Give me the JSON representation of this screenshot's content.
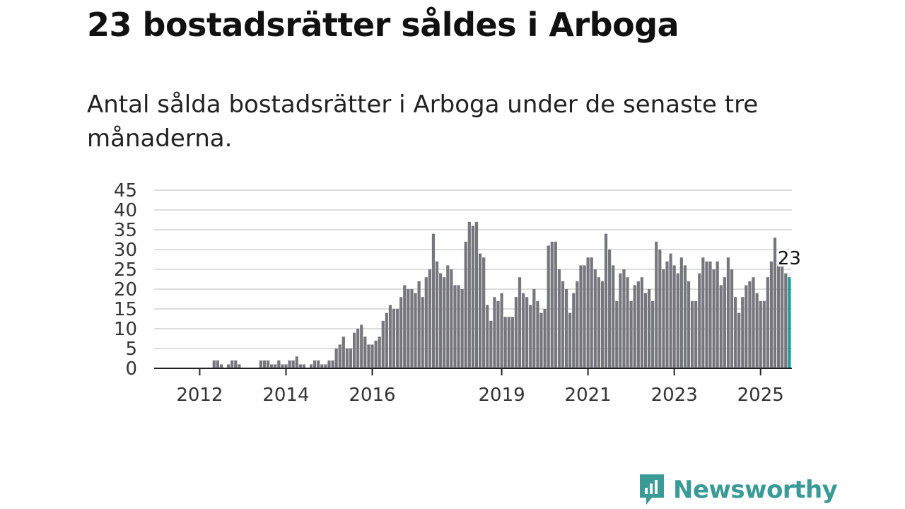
{
  "title": "23 bostadsrätter såldes i Arboga",
  "subtitle": "Antal sålda bostadsrätter i Arboga under de senaste tre månaderna.",
  "brand": {
    "name": "Newsworthy",
    "color": "#3a9a96",
    "icon": "newsworthy-logo-icon"
  },
  "colors": {
    "bar": "#76767d",
    "highlight": "#1a9b94",
    "grid": "#dddddd",
    "axis": "#222222"
  },
  "chart_data": {
    "type": "bar",
    "title": "",
    "xlabel": "",
    "ylabel": "",
    "ylim": [
      0,
      45
    ],
    "yticks": [
      "0",
      "5",
      "10",
      "15",
      "20",
      "25",
      "30",
      "35",
      "40",
      "45"
    ],
    "grid": true,
    "start": "2011-09",
    "frequency": "monthly",
    "xticks": [
      {
        "label": "2012",
        "index": 4
      },
      {
        "label": "2014",
        "index": 28
      },
      {
        "label": "2016",
        "index": 52
      },
      {
        "label": "2019",
        "index": 88
      },
      {
        "label": "2021",
        "index": 112
      },
      {
        "label": "2023",
        "index": 136
      },
      {
        "label": "2025",
        "index": 160
      }
    ],
    "values": [
      0,
      0,
      0,
      0,
      0,
      0,
      0,
      0,
      2,
      2,
      1,
      0,
      1,
      2,
      2,
      1,
      0,
      0,
      0,
      0,
      0,
      2,
      2,
      2,
      1,
      1,
      2,
      1,
      1,
      2,
      2,
      3,
      1,
      1,
      0,
      1,
      2,
      2,
      1,
      1,
      2,
      2,
      5,
      6,
      8,
      5,
      5,
      9,
      10,
      11,
      8,
      6,
      6,
      7,
      8,
      12,
      14,
      16,
      15,
      15,
      18,
      21,
      20,
      20,
      19,
      22,
      18,
      23,
      25,
      34,
      27,
      24,
      23,
      26,
      25,
      21,
      21,
      20,
      32,
      37,
      36,
      37,
      29,
      28,
      16,
      12,
      18,
      17,
      19,
      13,
      13,
      13,
      18,
      23,
      19,
      18,
      16,
      20,
      17,
      14,
      15,
      31,
      32,
      32,
      25,
      22,
      20,
      14,
      19,
      22,
      26,
      26,
      28,
      28,
      25,
      23,
      22,
      34,
      30,
      26,
      17,
      24,
      25,
      23,
      17,
      21,
      22,
      23,
      19,
      20,
      17,
      32,
      30,
      25,
      27,
      29,
      26,
      24,
      28,
      26,
      22,
      17,
      17,
      24,
      28,
      27,
      27,
      25,
      27,
      21,
      23,
      28,
      25,
      18,
      14,
      18,
      21,
      22,
      23,
      19,
      17,
      17,
      23,
      27,
      33,
      26,
      26,
      24,
      23
    ],
    "highlight_last": true,
    "last_value_label": "23"
  }
}
